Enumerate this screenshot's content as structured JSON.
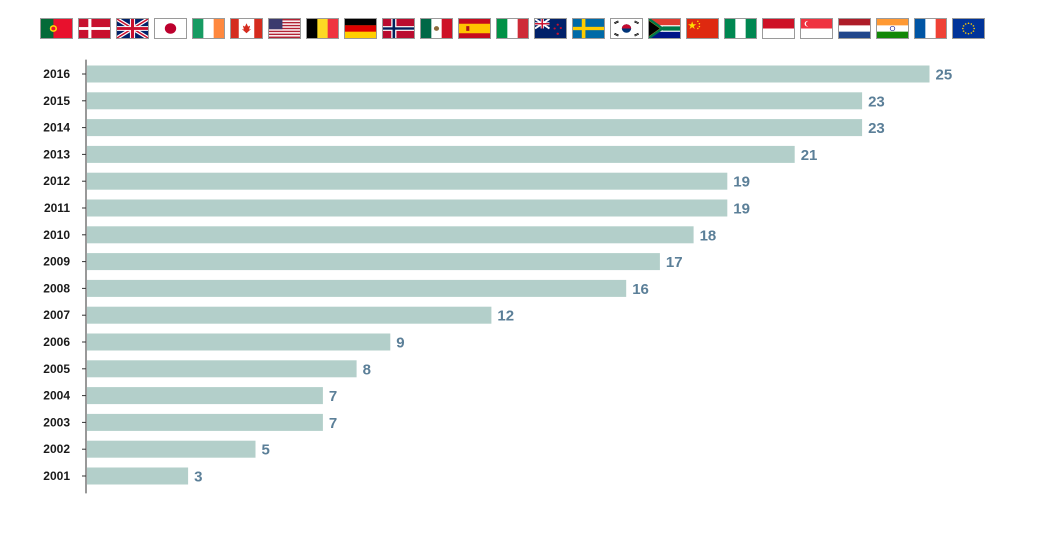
{
  "flags": [
    "portugal",
    "denmark",
    "united-kingdom",
    "japan",
    "ireland",
    "canada",
    "united-states",
    "belgium",
    "germany",
    "norway",
    "mexico",
    "spain",
    "italy",
    "new-zealand",
    "sweden",
    "south-korea",
    "south-africa",
    "china",
    "nigeria",
    "indonesia",
    "singapore",
    "netherlands",
    "india",
    "france",
    "european-union"
  ],
  "colors": {
    "bar": "#b3cfca",
    "value_label": "#5b7f98",
    "axis": "#333333"
  },
  "chart_data": {
    "type": "bar",
    "orientation": "horizontal",
    "title": "",
    "xlabel": "",
    "ylabel": "",
    "categories": [
      "2016",
      "2015",
      "2014",
      "2013",
      "2012",
      "2011",
      "2010",
      "2009",
      "2008",
      "2007",
      "2006",
      "2005",
      "2004",
      "2003",
      "2002",
      "2001"
    ],
    "values": [
      25,
      23,
      23,
      21,
      19,
      19,
      18,
      17,
      16,
      12,
      9,
      8,
      7,
      7,
      5,
      3
    ],
    "xlim": [
      0,
      25
    ],
    "grid": false,
    "data_labels": true
  }
}
